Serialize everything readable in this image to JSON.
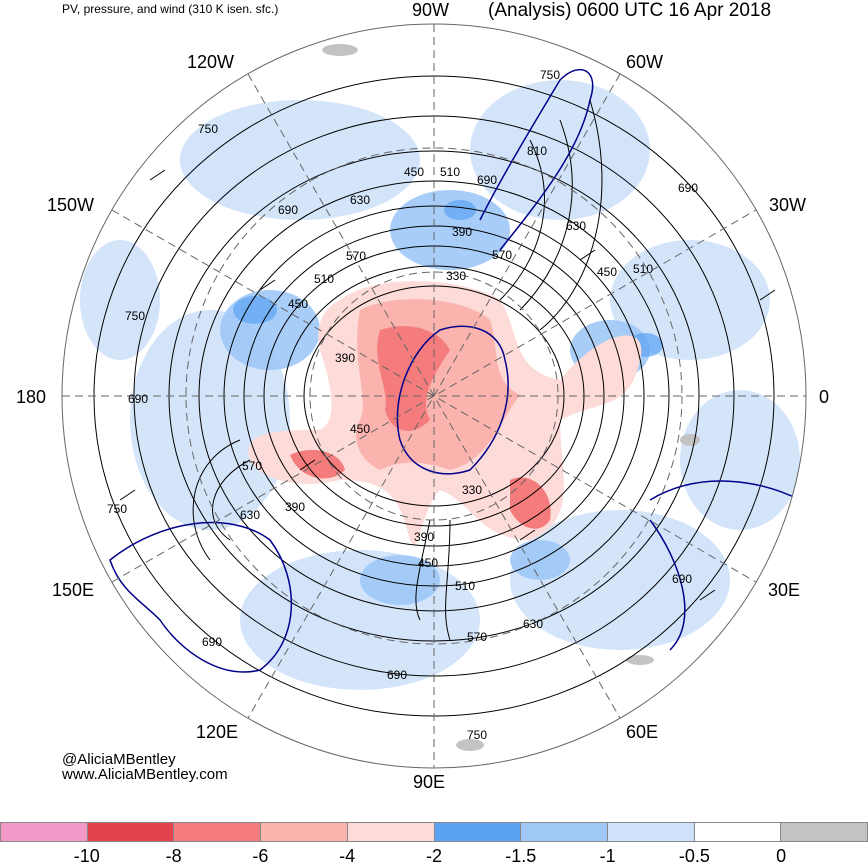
{
  "header": {
    "left_title": "PV, pressure, and wind (310 K isen. sfc.)",
    "right_title": "(Analysis) 0600 UTC 16 Apr 2018"
  },
  "longitude_labels": {
    "lon_90w": "90W",
    "lon_60w": "60W",
    "lon_30w": "30W",
    "lon_0": "0",
    "lon_30e": "30E",
    "lon_60e": "60E",
    "lon_90e": "90E",
    "lon_120e": "120E",
    "lon_150e": "150E",
    "lon_180": "180",
    "lon_150w": "150W",
    "lon_120w": "120W"
  },
  "credits": {
    "handle": "@AliciaMBentley",
    "website": "www.AliciaMBentley.com"
  },
  "contour_labels": [
    "750",
    "690",
    "630",
    "570",
    "510",
    "450",
    "390",
    "330",
    "810"
  ],
  "colorbar": {
    "colors": [
      "#f49ac9",
      "#e2434d",
      "#f47c7c",
      "#fbb3ae",
      "#fcdbd8",
      "#5ba3f2",
      "#9fc8f7",
      "#cfe2fa",
      "#ffffff",
      "#c3c3c3"
    ],
    "ticks": [
      "-10",
      "-8",
      "-6",
      "-4",
      "-2",
      "-1.5",
      "-1",
      "-0.5",
      "0"
    ]
  },
  "map": {
    "projection": "polar-stereographic",
    "water_color": "#ffffff",
    "coast_color": "#00008b"
  }
}
